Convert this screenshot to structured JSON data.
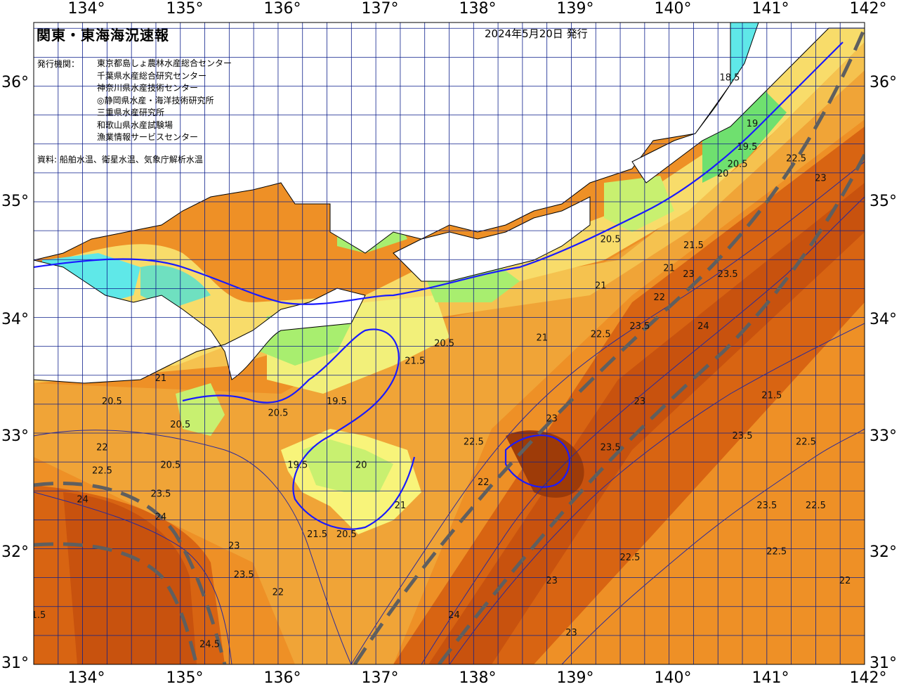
{
  "header": {
    "title": "関東・東海海況速報",
    "issue_date": "2024年5月20日 発行",
    "issuer_label": "発行機関：",
    "issuers": [
      "東京都島しょ農林水産総合センター",
      "千葉県水産総合研究センター",
      "神奈川県水産技術センター",
      "◎静岡県水産・海洋技術研究所",
      "三重県水産研究所",
      "和歌山県水産試験場",
      "漁業情報サービスセンター"
    ],
    "source": "資料: 船舶水温、衛星水温、気象庁解析水温"
  },
  "axes": {
    "longitudes": [
      "134°",
      "135°",
      "136°",
      "137°",
      "138°",
      "139°",
      "140°",
      "141°",
      "142°"
    ],
    "latitudes": [
      "36°",
      "35°",
      "34°",
      "33°",
      "32°",
      "31°"
    ]
  },
  "map": {
    "lon_range": [
      133.5,
      142
    ],
    "lat_range": [
      31,
      36.55
    ],
    "grid_step_deg": 0.25,
    "colors": {
      "land": "#ffffff",
      "coast": "#000000",
      "grid": "#0d1f8c",
      "isotherm_major": "#1a1aff",
      "isotherm_minor": "#2a2a9a",
      "current_axis": "#5f5f5f"
    },
    "temperature_colors": {
      "18": "#5fe8e8",
      "18.5": "#7cf0c8",
      "19": "#6fe06f",
      "19.5": "#a8ee6f",
      "20": "#c8f070",
      "20.5": "#f2f07a",
      "21": "#f8dc6a",
      "21.5": "#f5c24f",
      "22": "#f0a437",
      "22.5": "#ee9026",
      "23": "#e47a1a",
      "23.5": "#d86412",
      "24": "#c8520e"
    },
    "isotherm_labels": [
      {
        "text": "18.5",
        "lon": 140.62,
        "lat": 36.05
      },
      {
        "text": "19",
        "lon": 140.85,
        "lat": 35.65
      },
      {
        "text": "19.5",
        "lon": 140.8,
        "lat": 35.45
      },
      {
        "text": "20",
        "lon": 140.55,
        "lat": 35.22
      },
      {
        "text": "20.5",
        "lon": 140.7,
        "lat": 35.3
      },
      {
        "text": "20.5",
        "lon": 139.4,
        "lat": 34.65
      },
      {
        "text": "21",
        "lon": 140.0,
        "lat": 34.4
      },
      {
        "text": "21",
        "lon": 139.3,
        "lat": 34.25
      },
      {
        "text": "21",
        "lon": 138.7,
        "lat": 33.8
      },
      {
        "text": "21.5",
        "lon": 140.25,
        "lat": 34.6
      },
      {
        "text": "21.5",
        "lon": 141.05,
        "lat": 33.3
      },
      {
        "text": "22",
        "lon": 139.9,
        "lat": 34.15
      },
      {
        "text": "22",
        "lon": 138.1,
        "lat": 32.55
      },
      {
        "text": "22",
        "lon": 136.0,
        "lat": 31.6
      },
      {
        "text": "22",
        "lon": 141.8,
        "lat": 31.7
      },
      {
        "text": "22.5",
        "lon": 141.3,
        "lat": 35.35
      },
      {
        "text": "22.5",
        "lon": 139.3,
        "lat": 33.83
      },
      {
        "text": "22.5",
        "lon": 141.4,
        "lat": 32.9
      },
      {
        "text": "22.5",
        "lon": 141.5,
        "lat": 32.35
      },
      {
        "text": "22.5",
        "lon": 139.6,
        "lat": 31.9
      },
      {
        "text": "22.5",
        "lon": 141.1,
        "lat": 31.95
      },
      {
        "text": "23",
        "lon": 141.55,
        "lat": 35.18
      },
      {
        "text": "23",
        "lon": 140.2,
        "lat": 34.35
      },
      {
        "text": "23",
        "lon": 139.7,
        "lat": 33.25
      },
      {
        "text": "23",
        "lon": 138.8,
        "lat": 33.1
      },
      {
        "text": "23",
        "lon": 138.8,
        "lat": 31.7
      },
      {
        "text": "23",
        "lon": 139.0,
        "lat": 31.25
      },
      {
        "text": "23",
        "lon": 135.55,
        "lat": 32.0
      },
      {
        "text": "23.5",
        "lon": 140.6,
        "lat": 34.35
      },
      {
        "text": "23.5",
        "lon": 139.7,
        "lat": 33.9
      },
      {
        "text": "23.5",
        "lon": 139.4,
        "lat": 32.85
      },
      {
        "text": "23.5",
        "lon": 140.75,
        "lat": 32.95
      },
      {
        "text": "23.5",
        "lon": 141.0,
        "lat": 32.35
      },
      {
        "text": "23.5",
        "lon": 134.8,
        "lat": 32.45
      },
      {
        "text": "23.5",
        "lon": 135.65,
        "lat": 31.75
      },
      {
        "text": "24",
        "lon": 140.35,
        "lat": 33.9
      },
      {
        "text": "24",
        "lon": 134.0,
        "lat": 32.4
      },
      {
        "text": "24",
        "lon": 134.8,
        "lat": 32.25
      },
      {
        "text": "24",
        "lon": 137.8,
        "lat": 31.4
      },
      {
        "text": "24.5",
        "lon": 135.3,
        "lat": 31.15
      },
      {
        "text": "20.5",
        "lon": 137.7,
        "lat": 33.75
      },
      {
        "text": "20.5",
        "lon": 135.0,
        "lat": 33.05
      },
      {
        "text": "20.5",
        "lon": 134.3,
        "lat": 33.25
      },
      {
        "text": "20.5",
        "lon": 134.9,
        "lat": 32.7
      },
      {
        "text": "20.5",
        "lon": 136.0,
        "lat": 33.15
      },
      {
        "text": "20.5",
        "lon": 136.7,
        "lat": 32.1
      },
      {
        "text": "19.5",
        "lon": 136.2,
        "lat": 32.7
      },
      {
        "text": "19.5",
        "lon": 136.6,
        "lat": 33.25
      },
      {
        "text": "20",
        "lon": 136.85,
        "lat": 32.7
      },
      {
        "text": "21",
        "lon": 134.8,
        "lat": 33.45
      },
      {
        "text": "21.5",
        "lon": 136.4,
        "lat": 32.1
      },
      {
        "text": "21.5",
        "lon": 137.4,
        "lat": 33.6
      },
      {
        "text": "21",
        "lon": 137.25,
        "lat": 32.35
      },
      {
        "text": "22",
        "lon": 134.2,
        "lat": 32.85
      },
      {
        "text": "22.5",
        "lon": 134.2,
        "lat": 32.65
      },
      {
        "text": "22.5",
        "lon": 138.0,
        "lat": 32.9
      },
      {
        "text": "1.5",
        "lon": 133.55,
        "lat": 31.4
      }
    ]
  }
}
